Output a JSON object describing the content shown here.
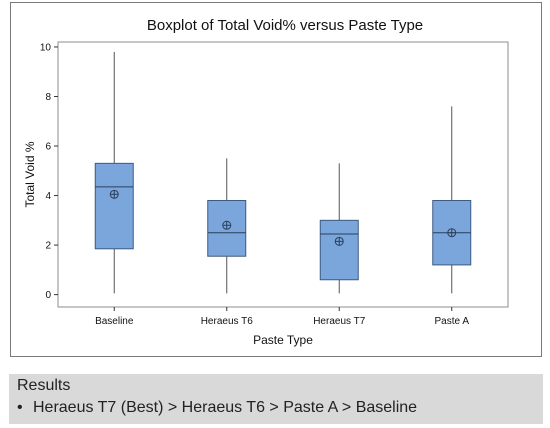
{
  "chart_data": {
    "type": "box",
    "title": "Boxplot of Total Void% versus Paste Type",
    "xlabel": "Paste Type",
    "ylabel": "Total Void %",
    "ylim": [
      -0.5,
      10.2
    ],
    "yticks": [
      0,
      2,
      4,
      6,
      8,
      10
    ],
    "grid": false,
    "colors": {
      "box_fill": "#7ba6dc",
      "box_stroke": "#3d5a80",
      "frame": "#8c8c8c"
    },
    "categories": [
      "Baseline",
      "Heraeus T6",
      "Heraeus T7",
      "Paste A"
    ],
    "boxes": [
      {
        "category": "Baseline",
        "min": 0.05,
        "q1": 1.85,
        "median": 4.35,
        "q3": 5.3,
        "max": 9.8,
        "mean": 4.05
      },
      {
        "category": "Heraeus T6",
        "min": 0.05,
        "q1": 1.55,
        "median": 2.5,
        "q3": 3.8,
        "max": 5.5,
        "mean": 2.8
      },
      {
        "category": "Heraeus T7",
        "min": 0.05,
        "q1": 0.6,
        "median": 2.45,
        "q3": 3.0,
        "max": 5.3,
        "mean": 2.15
      },
      {
        "category": "Paste A",
        "min": 0.05,
        "q1": 1.2,
        "median": 2.5,
        "q3": 3.8,
        "max": 7.6,
        "mean": 2.5
      }
    ]
  },
  "results": {
    "title": "Results",
    "bullet": "•",
    "text": "Heraeus T7 (Best) > Heraeus T6 > Paste A > Baseline"
  }
}
